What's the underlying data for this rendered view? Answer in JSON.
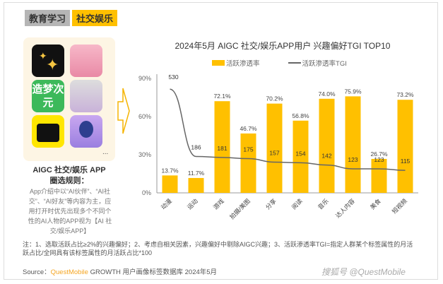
{
  "tabs": [
    "教育学习",
    "社交娱乐"
  ],
  "left": {
    "title1": "AIGC 社交/娱乐 APP",
    "title2": "圈选规则：",
    "desc": "App介绍中以“AI伙伴”、“AI社交”、“AI好友”等内容为主，应用打开时优先出现多个不同个性的AI人物的APP视为【AI 社交/娱乐APP】",
    "more": "...",
    "app_icon_text": "造梦次元"
  },
  "chart_data": {
    "type": "bar",
    "title": "2024年5月 AIGC 社交/娱乐APP用户 兴趣偏好TGI TOP10",
    "categories": [
      "动漫",
      "运动",
      "游戏",
      "拍摄/美图",
      "分享",
      "阅读",
      "音乐",
      "达人内容",
      "美食",
      "短视频"
    ],
    "series": [
      {
        "name": "活跃渗透率",
        "type": "bar",
        "values": [
          13.7,
          11.7,
          72.1,
          46.7,
          70.2,
          56.8,
          74.0,
          75.9,
          26.7,
          73.2
        ],
        "labels": [
          "13.7%",
          "11.7%",
          "72.1%",
          "46.7%",
          "70.2%",
          "56.8%",
          "74.0%",
          "75.9%",
          "26.7%",
          "73.2%"
        ]
      },
      {
        "name": "活跃渗透率TGI",
        "type": "line",
        "values": [
          530,
          186,
          181,
          175,
          157,
          154,
          142,
          123,
          123,
          115
        ]
      }
    ],
    "yticks": [
      "0%",
      "30%",
      "60%",
      "90%"
    ],
    "ylim": [
      0,
      90
    ],
    "colors": {
      "bar": "#ffc000",
      "line": "#666666"
    }
  },
  "note": "注：1、选取活跃占比≥2%的兴趣偏好；2、考虑自相关因素，兴趣偏好中剔除AIGC兴趣；3、活跃渗透率TGI=指定人群某个标签属性的月活跃占比/全网具有该标签属性的月活跃占比*100",
  "source": {
    "prefix": "Source：",
    "brand": "QuestMobile",
    "rest": "GROWTH 用户画像标签数据库 2024年5月"
  },
  "watermark": "搜狐号 @QuestMobile"
}
